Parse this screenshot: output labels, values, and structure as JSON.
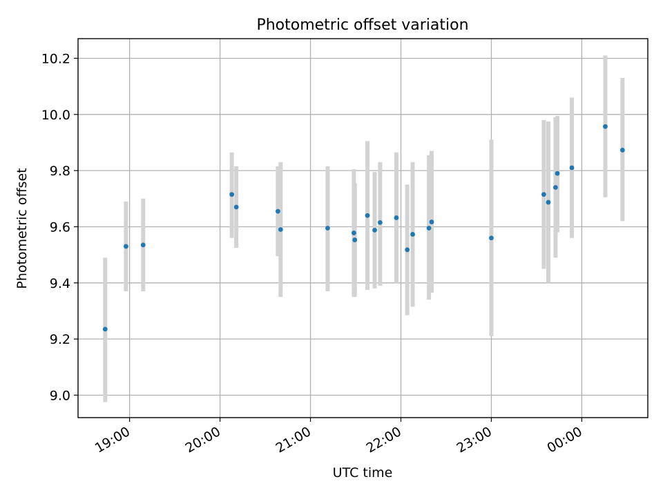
{
  "chart_data": {
    "type": "scatter",
    "title": "Photometric offset variation",
    "xlabel": "UTC time",
    "ylabel": "Photometric offset",
    "grid": true,
    "x_unit": "hours since 19:00 UTC",
    "xlim": [
      -0.57,
      5.73
    ],
    "ylim": [
      8.92,
      10.27
    ],
    "x_ticks": [
      {
        "value": 0,
        "label": "19:00"
      },
      {
        "value": 1,
        "label": "20:00"
      },
      {
        "value": 2,
        "label": "21:00"
      },
      {
        "value": 3,
        "label": "22:00"
      },
      {
        "value": 4,
        "label": "23:00"
      },
      {
        "value": 5,
        "label": "00:00"
      }
    ],
    "y_ticks": [
      {
        "value": 9.0,
        "label": "9.0"
      },
      {
        "value": 9.2,
        "label": "9.2"
      },
      {
        "value": 9.4,
        "label": "9.4"
      },
      {
        "value": 9.6,
        "label": "9.6"
      },
      {
        "value": 9.8,
        "label": "9.8"
      },
      {
        "value": 10.0,
        "label": "10.0"
      },
      {
        "value": 10.2,
        "label": "10.2"
      }
    ],
    "point_color": "#1f77b4",
    "errorbar_color": "#d3d3d3",
    "points": [
      {
        "x": -0.27,
        "y": 9.235,
        "ylow": 8.975,
        "yhigh": 9.49
      },
      {
        "x": -0.04,
        "y": 9.53,
        "ylow": 9.37,
        "yhigh": 9.69
      },
      {
        "x": 0.15,
        "y": 9.535,
        "ylow": 9.37,
        "yhigh": 9.7
      },
      {
        "x": 1.13,
        "y": 9.715,
        "ylow": 9.56,
        "yhigh": 9.865
      },
      {
        "x": 1.18,
        "y": 9.67,
        "ylow": 9.525,
        "yhigh": 9.815
      },
      {
        "x": 1.64,
        "y": 9.655,
        "ylow": 9.495,
        "yhigh": 9.815
      },
      {
        "x": 1.67,
        "y": 9.59,
        "ylow": 9.35,
        "yhigh": 9.83
      },
      {
        "x": 2.19,
        "y": 9.595,
        "ylow": 9.37,
        "yhigh": 9.815
      },
      {
        "x": 2.48,
        "y": 9.578,
        "ylow": 9.35,
        "yhigh": 9.805
      },
      {
        "x": 2.49,
        "y": 9.553,
        "ylow": 9.35,
        "yhigh": 9.755
      },
      {
        "x": 2.63,
        "y": 9.64,
        "ylow": 9.375,
        "yhigh": 9.905
      },
      {
        "x": 2.71,
        "y": 9.588,
        "ylow": 9.38,
        "yhigh": 9.795
      },
      {
        "x": 2.77,
        "y": 9.615,
        "ylow": 9.39,
        "yhigh": 9.83
      },
      {
        "x": 2.95,
        "y": 9.632,
        "ylow": 9.4,
        "yhigh": 9.865
      },
      {
        "x": 3.07,
        "y": 9.518,
        "ylow": 9.285,
        "yhigh": 9.75
      },
      {
        "x": 3.13,
        "y": 9.573,
        "ylow": 9.315,
        "yhigh": 9.83
      },
      {
        "x": 3.31,
        "y": 9.595,
        "ylow": 9.34,
        "yhigh": 9.855
      },
      {
        "x": 3.34,
        "y": 9.617,
        "ylow": 9.365,
        "yhigh": 9.87
      },
      {
        "x": 4.0,
        "y": 9.56,
        "ylow": 9.21,
        "yhigh": 9.91
      },
      {
        "x": 4.58,
        "y": 9.715,
        "ylow": 9.45,
        "yhigh": 9.98
      },
      {
        "x": 4.63,
        "y": 9.687,
        "ylow": 9.4,
        "yhigh": 9.975
      },
      {
        "x": 4.71,
        "y": 9.74,
        "ylow": 9.49,
        "yhigh": 9.99
      },
      {
        "x": 4.73,
        "y": 9.79,
        "ylow": 9.58,
        "yhigh": 9.995
      },
      {
        "x": 4.89,
        "y": 9.81,
        "ylow": 9.56,
        "yhigh": 10.06
      },
      {
        "x": 5.26,
        "y": 9.957,
        "ylow": 9.705,
        "yhigh": 10.21
      },
      {
        "x": 5.45,
        "y": 9.873,
        "ylow": 9.62,
        "yhigh": 10.13
      }
    ]
  }
}
